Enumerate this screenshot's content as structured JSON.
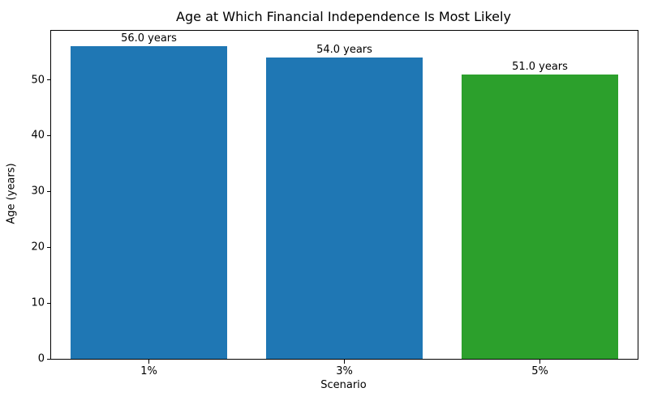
{
  "chart_data": {
    "type": "bar",
    "title": "Age at Which Financial Independence Is Most Likely",
    "xlabel": "Scenario",
    "ylabel": "Age (years)",
    "categories": [
      "1%",
      "3%",
      "5%"
    ],
    "values": [
      56.0,
      54.0,
      51.0
    ],
    "bar_labels": [
      "56.0 years",
      "54.0 years",
      "51.0 years"
    ],
    "bar_colors": [
      "#1f77b4",
      "#1f77b4",
      "#2ca02c"
    ],
    "bar_width_fraction": 0.8,
    "ylim": [
      0,
      58.8
    ],
    "yticks": [
      0,
      10,
      20,
      30,
      40,
      50
    ],
    "grid": false,
    "legend": null,
    "spine_color": "#000000",
    "background_color": "#ffffff"
  }
}
